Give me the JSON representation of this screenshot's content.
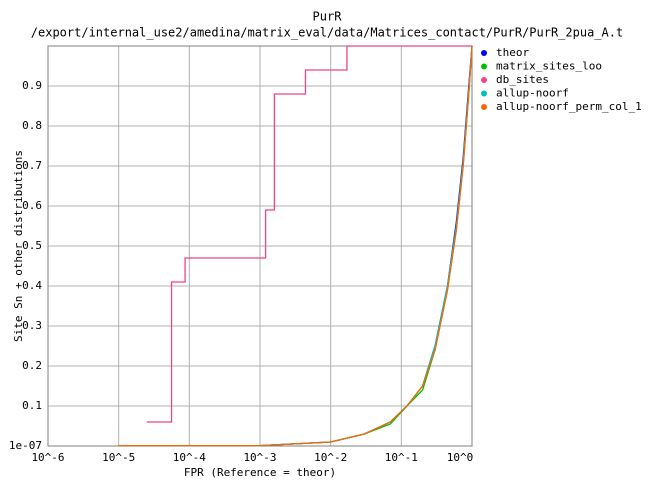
{
  "chart_data": {
    "type": "line",
    "title": "PurR",
    "subtitle": "/export/internal_use2/amedina/matrix_eval/data/Matrices_contact/PurR/PurR_2pua_A.t",
    "x_label": "FPR (Reference = theor)",
    "y_label": "Site Sn + other distributions",
    "x_scale": "log",
    "grid": true,
    "legend": "outside-right-top",
    "xlim": [
      1e-06,
      1
    ],
    "ylim": [
      1e-07,
      1
    ],
    "xticks": [
      {
        "value": 1e-06,
        "label": "10^-6"
      },
      {
        "value": 1e-05,
        "label": "10^-5"
      },
      {
        "value": 0.0001,
        "label": "10^-4"
      },
      {
        "value": 0.001,
        "label": "10^-3"
      },
      {
        "value": 0.01,
        "label": "10^-2"
      },
      {
        "value": 0.1,
        "label": "10^-1"
      },
      {
        "value": 1,
        "label": "10^0"
      }
    ],
    "yticks": [
      {
        "value": 1e-07,
        "label": "1e-07"
      },
      0.1,
      0.2,
      0.3,
      0.4,
      0.5,
      0.6,
      0.7,
      0.8,
      0.9
    ],
    "series": [
      {
        "name": "theor",
        "color": "#0000ff",
        "x": [
          1e-05,
          0.001,
          0.01,
          0.03,
          0.07,
          0.12,
          0.2,
          0.3,
          0.45,
          0.6,
          0.75,
          0.9,
          1
        ],
        "values": [
          0.001,
          0.001,
          0.01,
          0.03,
          0.06,
          0.1,
          0.15,
          0.25,
          0.4,
          0.56,
          0.72,
          0.9,
          1
        ]
      },
      {
        "name": "matrix_sites_loo",
        "color": "#00c000",
        "x": [
          1e-05,
          0.001,
          0.01,
          0.03,
          0.07,
          0.12,
          0.2,
          0.3,
          0.45,
          0.6,
          0.75,
          0.9,
          1
        ],
        "values": [
          0.001,
          0.001,
          0.01,
          0.03,
          0.055,
          0.1,
          0.14,
          0.24,
          0.39,
          0.54,
          0.7,
          0.88,
          1
        ]
      },
      {
        "name": "db_sites",
        "color": "#ee4488",
        "x": [
          2.5e-05,
          5.6e-05,
          5.6e-05,
          8.7e-05,
          8.7e-05,
          0.0012,
          0.0012,
          0.0016,
          0.0016,
          0.0044,
          0.0044,
          0.017,
          0.017,
          1
        ],
        "values": [
          0.06,
          0.06,
          0.41,
          0.41,
          0.47,
          0.47,
          0.59,
          0.59,
          0.88,
          0.88,
          0.94,
          0.94,
          1,
          1
        ]
      },
      {
        "name": "allup-noorf",
        "color": "#00c0c0",
        "x": [
          1e-05,
          0.001,
          0.01,
          0.03,
          0.07,
          0.12,
          0.2,
          0.3,
          0.45,
          0.6,
          0.75,
          0.9,
          1
        ],
        "values": [
          0.001,
          0.001,
          0.01,
          0.03,
          0.06,
          0.1,
          0.15,
          0.25,
          0.4,
          0.55,
          0.71,
          0.89,
          1
        ]
      },
      {
        "name": "allup-noorf_perm_col_1",
        "color": "#ff6600",
        "x": [
          1e-05,
          0.001,
          0.01,
          0.03,
          0.07,
          0.12,
          0.2,
          0.3,
          0.45,
          0.6,
          0.75,
          0.9,
          1
        ],
        "values": [
          0.001,
          0.001,
          0.01,
          0.03,
          0.06,
          0.1,
          0.15,
          0.24,
          0.39,
          0.54,
          0.7,
          0.88,
          1
        ]
      }
    ]
  }
}
